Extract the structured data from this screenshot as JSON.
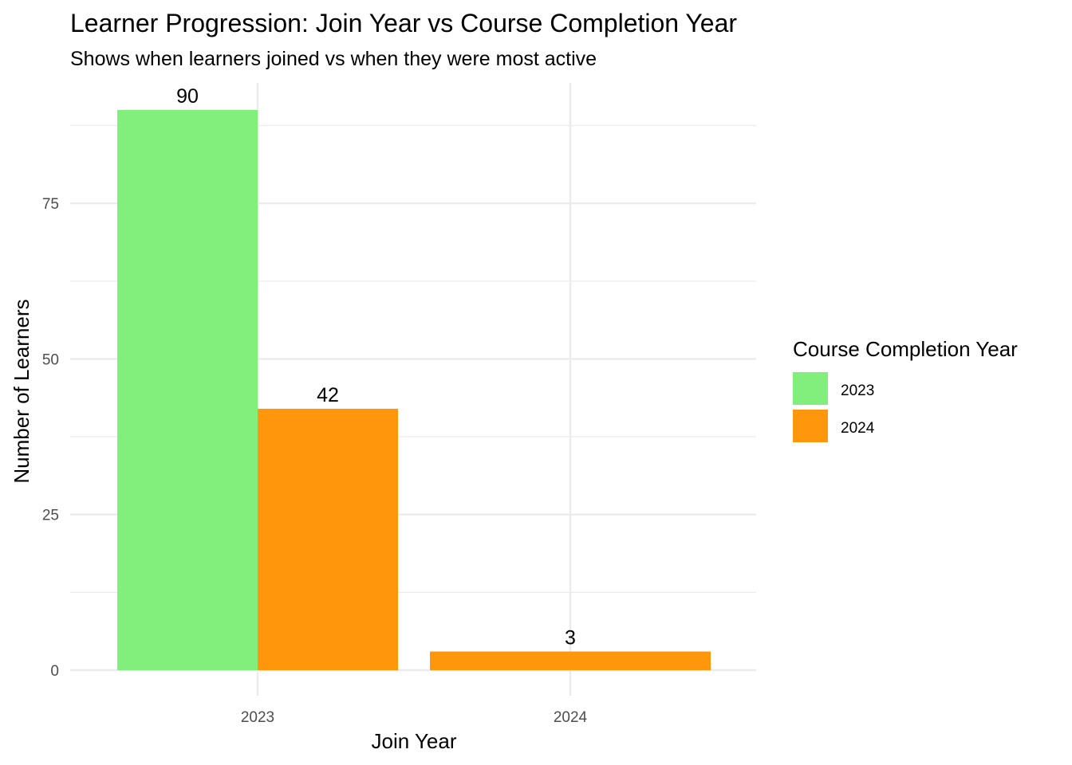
{
  "chart_data": {
    "type": "bar",
    "title": "Learner Progression: Join Year vs Course Completion Year",
    "subtitle": "Shows when learners joined vs when they were most active",
    "xlabel": "Join Year",
    "ylabel": "Number of Learners",
    "categories": [
      "2023",
      "2024"
    ],
    "series": [
      {
        "name": "2023",
        "color": "#82EE7B",
        "values": [
          90,
          null
        ]
      },
      {
        "name": "2024",
        "color": "#FF960C",
        "values": [
          42,
          3
        ]
      }
    ],
    "ylim": [
      0,
      94
    ],
    "y_ticks": [
      0,
      25,
      50,
      75
    ],
    "grid": true,
    "legend": {
      "title": "Course Completion Year",
      "position": "right"
    },
    "data_labels": true
  }
}
